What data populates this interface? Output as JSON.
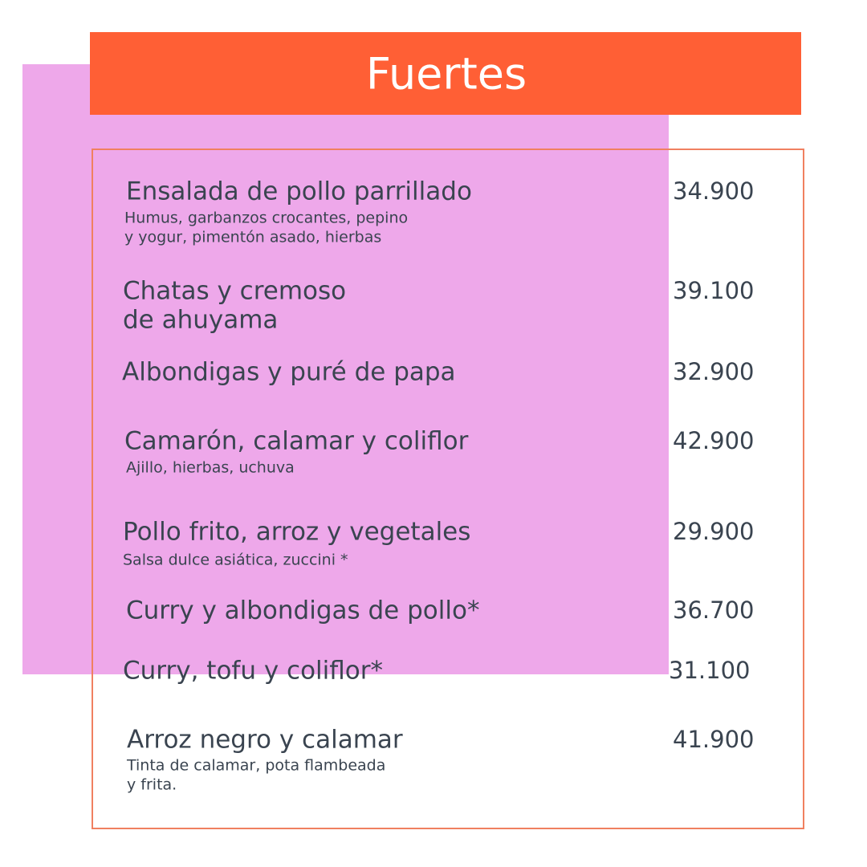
{
  "title": "Fuertes",
  "items": [
    {
      "name_lines": [
        "Ensalada de pollo parrillado"
      ],
      "description_lines": [
        "Humus, garbanzos crocantes, pepino",
        "y yogur, pimentón asado, hierbas"
      ],
      "price": "34.900"
    },
    {
      "name_lines": [
        "Chatas y cremoso",
        "de ahuyama"
      ],
      "description_lines": [],
      "price": "39.100"
    },
    {
      "name_lines": [
        "Albondigas y puré de papa"
      ],
      "description_lines": [],
      "price": "32.900"
    },
    {
      "name_lines": [
        "Camarón, calamar y coliflor"
      ],
      "description_lines": [
        "Ajillo, hierbas, uchuva"
      ],
      "price": "42.900"
    },
    {
      "name_lines": [
        "Pollo frito, arroz y vegetales"
      ],
      "description_lines": [
        "Salsa dulce asiática, zuccini *"
      ],
      "price": "29.900"
    },
    {
      "name_lines": [
        "Curry y albondigas de pollo*"
      ],
      "description_lines": [],
      "price": "36.700"
    },
    {
      "name_lines": [
        "Curry, tofu y coliflor*"
      ],
      "description_lines": [],
      "price": "31.100"
    },
    {
      "name_lines": [
        "Arroz negro y calamar"
      ],
      "description_lines": [
        "Tinta de calamar, pota flambeada",
        "y frita."
      ],
      "price": "41.900"
    }
  ]
}
